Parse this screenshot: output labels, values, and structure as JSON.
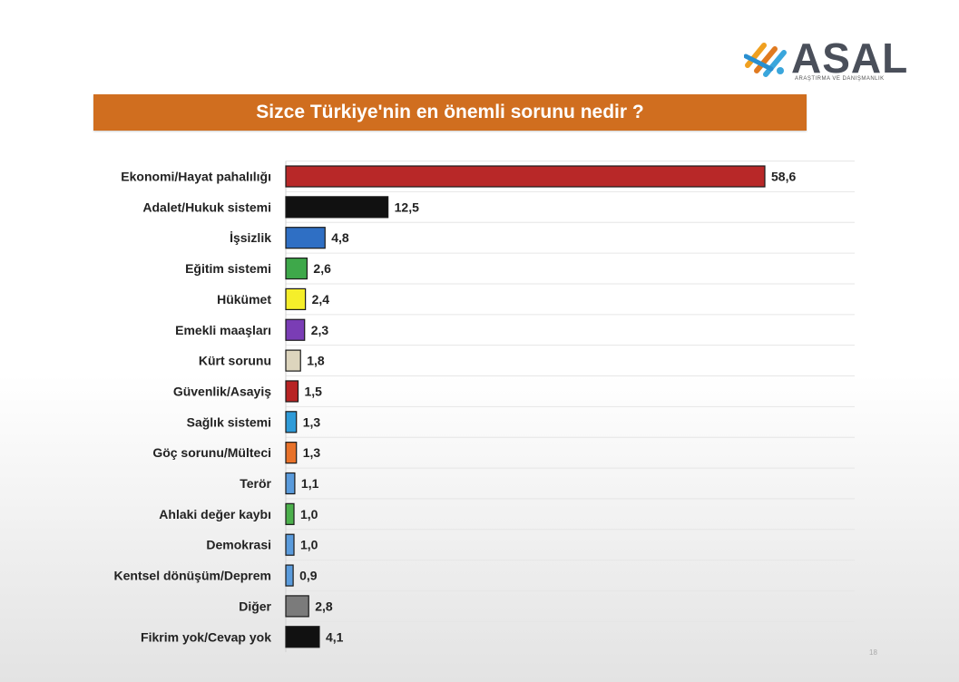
{
  "logo": {
    "text": "ASAL",
    "subtitle": "ARAŞTIRMA VE DANIŞMANLIK"
  },
  "title": "Sizce Türkiye'nin en önemli sorunu nedir ?",
  "page_number": "18",
  "colors": {
    "title_bar": "#d06e1f"
  },
  "chart_data": {
    "type": "bar",
    "orientation": "horizontal",
    "title": "Sizce Türkiye'nin en önemli sorunu nedir ?",
    "categories": [
      "Ekonomi/Hayat pahalılığı",
      "Adalet/Hukuk sistemi",
      "İşsizlik",
      "Eğitim sistemi",
      "Hükümet",
      "Emekli maaşları",
      "Kürt sorunu",
      "Güvenlik/Asayiş",
      "Sağlık sistemi",
      "Göç sorunu/Mülteci",
      "Terör",
      "Ahlaki değer kaybı",
      "Demokrasi",
      "Kentsel dönüşüm/Deprem",
      "Diğer",
      "Fikrim yok/Cevap yok"
    ],
    "values": [
      58.6,
      12.5,
      4.8,
      2.6,
      2.4,
      2.3,
      1.8,
      1.5,
      1.3,
      1.3,
      1.1,
      1.0,
      1.0,
      0.9,
      2.8,
      4.1
    ],
    "value_labels": [
      "58,6",
      "12,5",
      "4,8",
      "2,6",
      "2,4",
      "2,3",
      "1,8",
      "1,5",
      "1,3",
      "1,3",
      "1,1",
      "1,0",
      "1,0",
      "0,9",
      "2,8",
      "4,1"
    ],
    "bar_colors": [
      "#b82828",
      "#111111",
      "#2f6fc4",
      "#3ea84a",
      "#f5ee2a",
      "#7a3db5",
      "#ddd5bd",
      "#b82424",
      "#2f9bd8",
      "#e8722a",
      "#5a9bdc",
      "#4cb04c",
      "#5a9bdc",
      "#5a9bdc",
      "#7b7b7b",
      "#111111"
    ],
    "xlim": [
      0,
      60
    ],
    "grid": true
  }
}
